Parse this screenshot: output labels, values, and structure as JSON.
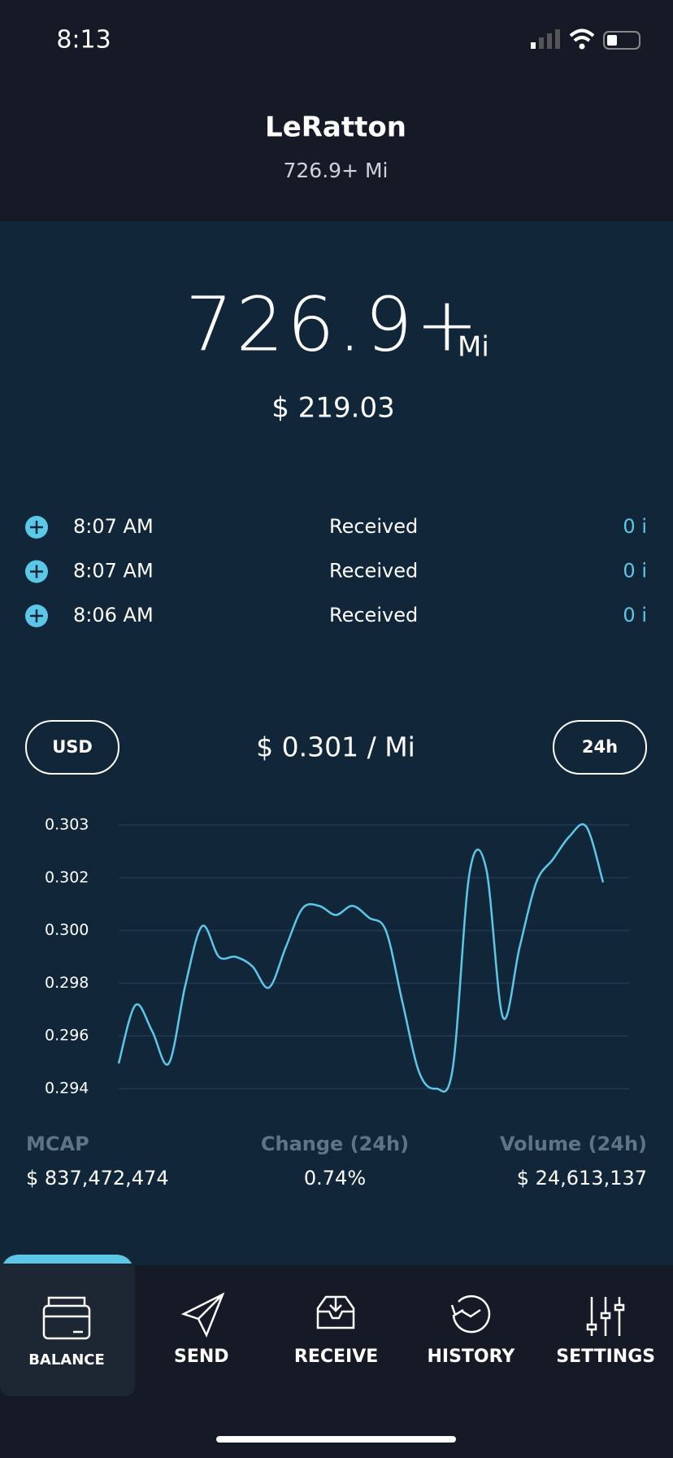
{
  "status_bar": {
    "time": "8:13"
  },
  "header": {
    "title": "LeRatton",
    "subtitle": "726.9+ Mi"
  },
  "balance": {
    "amount": "726.9+",
    "unit": "Mi",
    "fiat": "$ 219.03"
  },
  "transactions": [
    {
      "time": "8:07 AM",
      "status": "Received",
      "amount": "0 i"
    },
    {
      "time": "8:07 AM",
      "status": "Received",
      "amount": "0 i"
    },
    {
      "time": "8:06 AM",
      "status": "Received",
      "amount": "0 i"
    }
  ],
  "price": {
    "currency": "USD",
    "rate": "$ 0.301 / Mi",
    "period": "24h"
  },
  "chart_data": {
    "type": "line",
    "color": "#5bc8e8",
    "grid": true,
    "values": [
      0.29526,
      0.29725,
      0.29637,
      0.29526,
      0.29795,
      0.29995,
      0.2989,
      0.2989,
      0.29858,
      0.29785,
      0.29922,
      0.30055,
      0.30064,
      0.30033,
      0.30064,
      0.30023,
      0.29979,
      0.29732,
      0.29494,
      0.2944,
      0.2951,
      0.30175,
      0.30191,
      0.29684,
      0.29922,
      0.30144,
      0.30223,
      0.30302,
      0.30334,
      0.30144
    ],
    "ylim": [
      0.2944,
      0.3034
    ],
    "yticks": [
      {
        "value": 0.2944,
        "label": "0.294"
      },
      {
        "value": 0.2962,
        "label": "0.296"
      },
      {
        "value": 0.298,
        "label": "0.298"
      },
      {
        "value": 0.2998,
        "label": "0.300"
      },
      {
        "value": 0.3016,
        "label": "0.302"
      },
      {
        "value": 0.3034,
        "label": "0.303"
      }
    ]
  },
  "stats": [
    {
      "label": "MCAP",
      "value": "$ 837,472,474"
    },
    {
      "label": "Change (24h)",
      "value": "0.74%"
    },
    {
      "label": "Volume (24h)",
      "value": "$ 24,613,137"
    }
  ],
  "tabs": [
    "BALANCE",
    "SEND",
    "RECEIVE",
    "HISTORY",
    "SETTINGS"
  ]
}
